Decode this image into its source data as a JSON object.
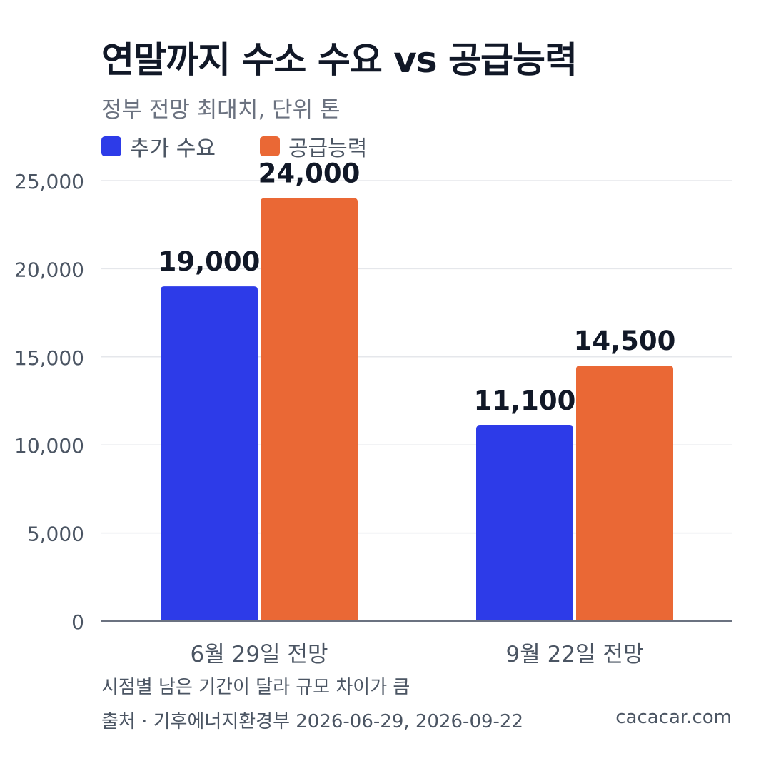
{
  "header": {
    "title": "연말까지 수소 수요 vs 공급능력",
    "subtitle": "정부 전망 최대치, 단위 톤"
  },
  "legend": [
    {
      "label": "추가 수요",
      "color": "#2d3be8"
    },
    {
      "label": "공급능력",
      "color": "#ea6835"
    }
  ],
  "chart_data": {
    "type": "bar",
    "categories": [
      "6월 29일 전망",
      "9월 22일 전망"
    ],
    "series": [
      {
        "name": "추가 수요",
        "values": [
          19000,
          11100
        ],
        "color": "#2d3be8"
      },
      {
        "name": "공급능력",
        "values": [
          24000,
          14500
        ],
        "color": "#ea6835"
      }
    ],
    "ylim": [
      0,
      25000
    ],
    "yticks": [
      0,
      5000,
      10000,
      15000,
      20000,
      25000
    ],
    "ytick_labels": [
      "0",
      "5,000",
      "10,000",
      "15,000",
      "20,000",
      "25,000"
    ],
    "data_labels": [
      [
        "19,000",
        "11,100"
      ],
      [
        "24,000",
        "14,500"
      ]
    ],
    "grid": true,
    "legend_position": "top-left"
  },
  "footer": {
    "note": "시점별 남은 기간이 달라 규모 차이가 큼",
    "source": "출처 · 기후에너지환경부 2026-06-29, 2026-09-22",
    "brand": "cacacar.com"
  }
}
